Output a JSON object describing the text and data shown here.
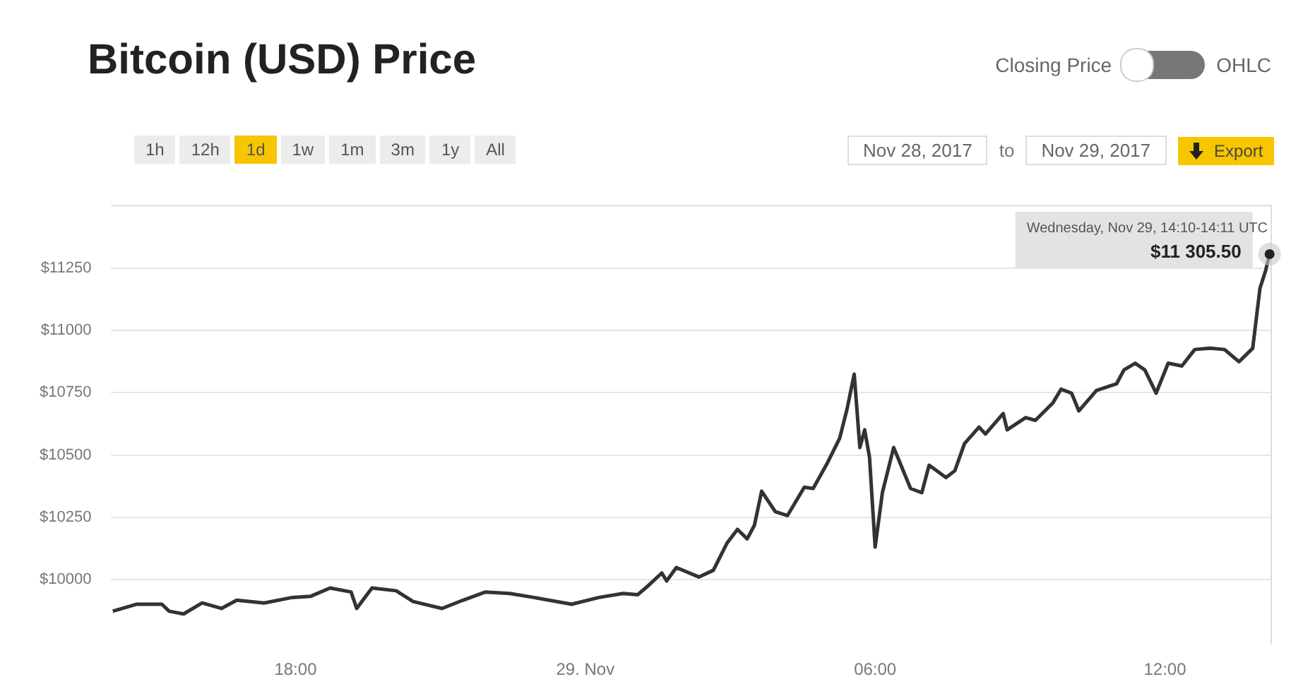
{
  "chart_data": {
    "type": "line",
    "title": "Bitcoin (USD) Price",
    "x": [
      "2017-11-28T14:13",
      "2017-11-28T14:43",
      "2017-11-28T15:14",
      "2017-11-28T15:23",
      "2017-11-28T15:41",
      "2017-11-28T16:04",
      "2017-11-28T16:28",
      "2017-11-28T16:47",
      "2017-11-28T17:21",
      "2017-11-28T17:56",
      "2017-11-28T18:19",
      "2017-11-28T18:43",
      "2017-11-28T19:09",
      "2017-11-28T19:16",
      "2017-11-28T19:35",
      "2017-11-28T20:05",
      "2017-11-28T20:26",
      "2017-11-28T21:02",
      "2017-11-28T21:28",
      "2017-11-28T21:56",
      "2017-11-28T22:26",
      "2017-11-28T22:56",
      "2017-11-28T23:43",
      "2017-11-29T00:17",
      "2017-11-29T00:47",
      "2017-11-29T01:05",
      "2017-11-29T01:17",
      "2017-11-29T01:35",
      "2017-11-29T01:41",
      "2017-11-29T01:53",
      "2017-11-29T02:21",
      "2017-11-29T02:39",
      "2017-11-29T02:56",
      "2017-11-29T03:09",
      "2017-11-29T03:21",
      "2017-11-29T03:30",
      "2017-11-29T03:39",
      "2017-11-29T03:56",
      "2017-11-29T04:11",
      "2017-11-29T04:32",
      "2017-11-29T04:43",
      "2017-11-29T05:00",
      "2017-11-29T05:16",
      "2017-11-29T05:25",
      "2017-11-29T05:34",
      "2017-11-29T05:41",
      "2017-11-29T05:47",
      "2017-11-29T05:53",
      "2017-11-29T06:00",
      "2017-11-29T06:09",
      "2017-11-29T06:23",
      "2017-11-29T06:44",
      "2017-11-29T06:58",
      "2017-11-29T07:07",
      "2017-11-29T07:28",
      "2017-11-29T07:39",
      "2017-11-29T07:51",
      "2017-11-29T08:09",
      "2017-11-29T08:17",
      "2017-11-29T08:39",
      "2017-11-29T08:44",
      "2017-11-29T09:07",
      "2017-11-29T09:19",
      "2017-11-29T09:41",
      "2017-11-29T09:51",
      "2017-11-29T10:04",
      "2017-11-29T10:13",
      "2017-11-29T10:35",
      "2017-11-29T11:00",
      "2017-11-29T11:09",
      "2017-11-29T11:23",
      "2017-11-29T11:35",
      "2017-11-29T11:49",
      "2017-11-29T12:04",
      "2017-11-29T12:21",
      "2017-11-29T12:37",
      "2017-11-29T12:56",
      "2017-11-29T13:14",
      "2017-11-29T13:32",
      "2017-11-29T13:49",
      "2017-11-29T13:58",
      "2017-11-29T14:05",
      "2017-11-29T14:10"
    ],
    "series": [
      {
        "color": "#333333",
        "values": [
          9874,
          9902,
          9902,
          9874,
          9863,
          9907,
          9885,
          9918,
          9907,
          9929,
          9934,
          9967,
          9951,
          9885,
          9967,
          9956,
          9913,
          9885,
          9918,
          9951,
          9945,
          9929,
          9902,
          9929,
          9945,
          9940,
          9973,
          10027,
          9995,
          10049,
          10011,
          10038,
          10147,
          10202,
          10164,
          10218,
          10355,
          10273,
          10257,
          10371,
          10366,
          10464,
          10568,
          10683,
          10824,
          10530,
          10601,
          10491,
          10131,
          10349,
          10530,
          10366,
          10349,
          10459,
          10410,
          10437,
          10546,
          10612,
          10584,
          10666,
          10601,
          10650,
          10639,
          10710,
          10764,
          10748,
          10677,
          10759,
          10786,
          10841,
          10868,
          10841,
          10748,
          10868,
          10857,
          10923,
          10928,
          10923,
          10874,
          10928,
          11168,
          11239,
          11305.5
        ]
      }
    ],
    "xlim": [
      "2017-11-28T14:11",
      "2017-11-29T14:12"
    ],
    "xticks": [
      {
        "value": "2017-11-28T18:00",
        "label": "18:00"
      },
      {
        "value": "2017-11-29T00:00",
        "label": "29. Nov"
      },
      {
        "value": "2017-11-29T06:00",
        "label": "06:00"
      },
      {
        "value": "2017-11-29T12:00",
        "label": "12:00"
      }
    ],
    "ylim": [
      9740,
      11500
    ],
    "yticks": [
      {
        "value": 10000,
        "label": "$10000"
      },
      {
        "value": 10250,
        "label": "$10250"
      },
      {
        "value": 10500,
        "label": "$10500"
      },
      {
        "value": 10750,
        "label": "$10750"
      },
      {
        "value": 11000,
        "label": "$11000"
      },
      {
        "value": 11250,
        "label": "$11250"
      }
    ],
    "grid": "y",
    "legend": false,
    "marker": "none",
    "line_style": "solid",
    "annotations": [
      {
        "text": "Wednesday, Nov 29, 14:10-14:11 UTC",
        "x": "2017-11-29T14:10",
        "y": 11305.5
      },
      {
        "text": "$11 305.50",
        "x": "2017-11-29T14:10",
        "y": 11305.5
      },
      "Closing Price",
      "OHLC",
      "1h",
      "12h",
      "1d",
      "1w",
      "1m",
      "3m",
      "1y",
      "All",
      "Nov 28, 2017",
      "to",
      "Nov 29, 2017",
      "Export"
    ]
  }
}
